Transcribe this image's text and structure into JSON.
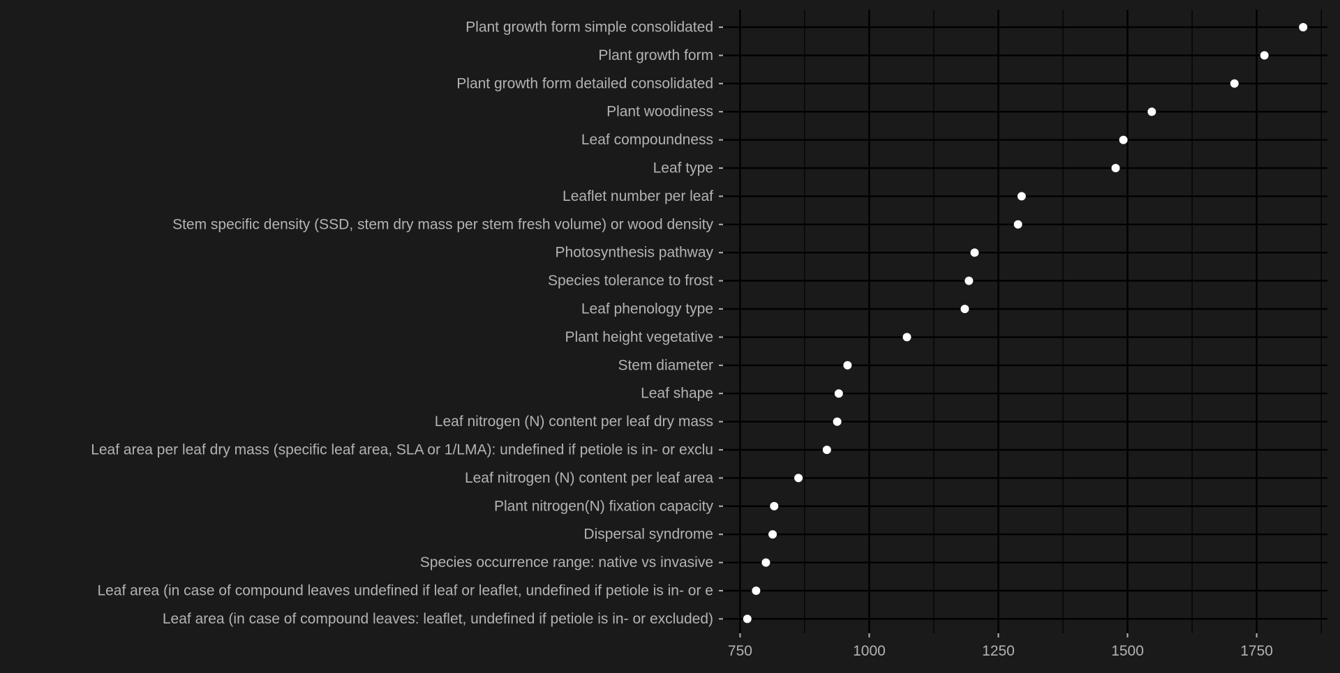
{
  "chart_data": {
    "type": "scatter",
    "title": "",
    "xlabel": "",
    "ylabel": "",
    "xlim": [
      717,
      1887
    ],
    "x_ticks": [
      750,
      1000,
      1250,
      1500,
      1750
    ],
    "x_tick_labels": [
      "750",
      "1000",
      "1250",
      "1500",
      "1750"
    ],
    "x_minor_ticks": [
      875,
      1125,
      1375,
      1625,
      1875
    ],
    "grid": true,
    "legend": "none",
    "colors": {
      "background": "#1a1a1a",
      "panel": "#1a1a1a",
      "grid": "#000000",
      "point": "#ffffff",
      "text": "#b3b3b3"
    },
    "categories": [
      "Plant growth form simple consolidated",
      "Plant growth form",
      "Plant growth form detailed consolidated",
      "Plant woodiness",
      "Leaf compoundness",
      "Leaf type",
      "Leaflet number per leaf",
      "Stem specific density (SSD, stem dry mass per stem fresh volume) or wood density",
      "Photosynthesis pathway",
      "Species tolerance to frost",
      "Leaf phenology type",
      "Plant height vegetative",
      "Stem diameter",
      "Leaf shape",
      "Leaf nitrogen (N) content per leaf dry mass",
      "Leaf area per leaf dry mass (specific leaf area, SLA or 1/LMA): undefined if petiole is in- or exclu",
      "Leaf nitrogen (N) content per leaf area",
      "Plant nitrogen(N) fixation capacity",
      "Dispersal syndrome",
      "Species occurrence range: native vs invasive",
      "Leaf area (in case of compound leaves undefined if leaf or leaflet, undefined if petiole is in- or e",
      "Leaf area (in case of compound leaves: leaflet, undefined if petiole is in- or excluded)"
    ],
    "values": [
      1840,
      1765,
      1707,
      1547,
      1492,
      1477,
      1295,
      1288,
      1204,
      1193,
      1185,
      1073,
      958,
      941,
      938,
      918,
      863,
      816,
      813,
      800,
      781,
      764
    ]
  }
}
